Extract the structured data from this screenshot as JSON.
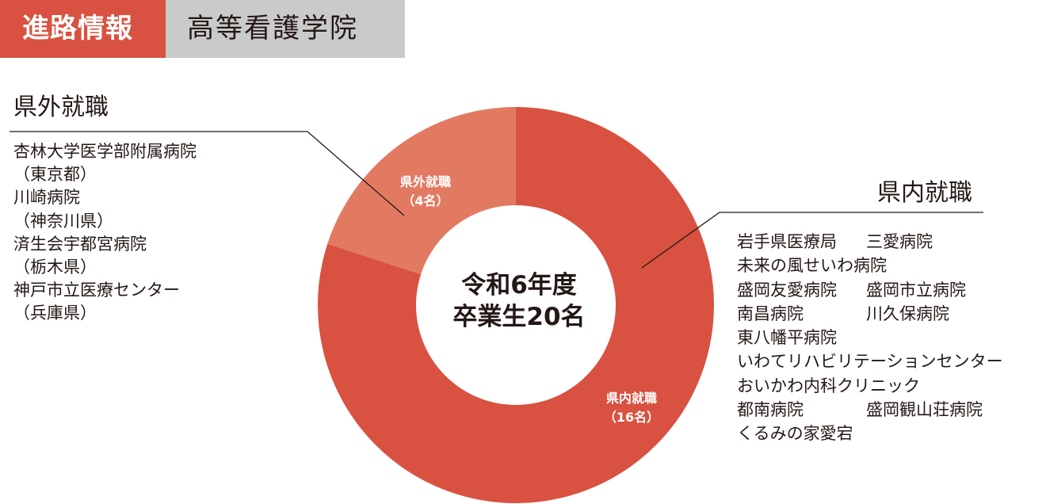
{
  "header": {
    "badge": "進路情報",
    "subtitle": "高等看護学院"
  },
  "colors": {
    "accent": "#d95140",
    "slice_in": "#d95140",
    "slice_out": "#e27a62",
    "header_gray": "#c9caca"
  },
  "center": {
    "line1": "令和6年度",
    "line2": "卒業生20名"
  },
  "out_of_pref": {
    "heading": "県外就職",
    "items": [
      "杏林大学医学部附属病院",
      "（東京都）",
      "川崎病院",
      "（神奈川県）",
      "済生会宇都宮病院",
      "（栃木県）",
      "神戸市立医療センター",
      "（兵庫県）"
    ]
  },
  "in_pref": {
    "heading": "県内就職",
    "rows": [
      [
        "岩手県医療局",
        "三愛病院"
      ],
      [
        "未来の風せいわ病院",
        ""
      ],
      [
        "盛岡友愛病院",
        "盛岡市立病院"
      ],
      [
        "南昌病院",
        "川久保病院"
      ],
      [
        "東八幡平病院",
        ""
      ],
      [
        "いわてリハビリテーションセンター",
        ""
      ],
      [
        "おいかわ内科クリニック",
        ""
      ],
      [
        "都南病院",
        "盛岡観山荘病院"
      ],
      [
        "くるみの家愛宕",
        ""
      ]
    ]
  },
  "chart_data": {
    "type": "pie",
    "title": "",
    "total_label": "卒業生20名",
    "categories": [
      "県内就職",
      "県外就職"
    ],
    "values": [
      16,
      4
    ],
    "value_labels": [
      "（16名）",
      "（4名）"
    ],
    "colors": [
      "#d95140",
      "#e27a62"
    ]
  }
}
